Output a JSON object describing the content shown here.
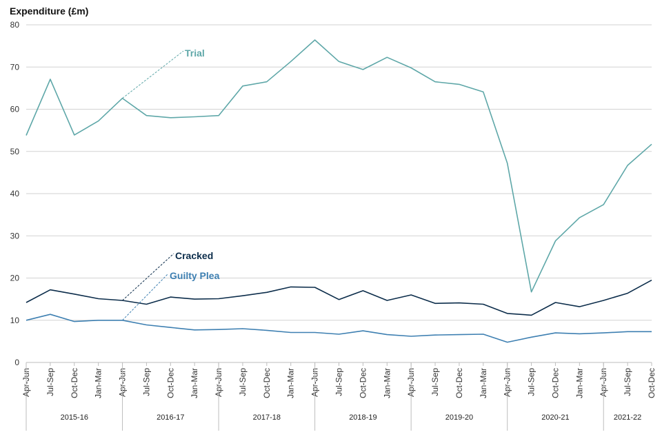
{
  "chart_data": {
    "type": "line",
    "ylabel": "Expenditure (£m)",
    "ylim": [
      0,
      80
    ],
    "yticks": [
      0,
      10,
      20,
      30,
      40,
      50,
      60,
      70,
      80
    ],
    "grid": true,
    "x": [
      "Apr-Jun",
      "Jul-Sep",
      "Oct-Dec",
      "Jan-Mar",
      "Apr-Jun",
      "Jul-Sep",
      "Oct-Dec",
      "Jan-Mar",
      "Apr-Jun",
      "Jul-Sep",
      "Oct-Dec",
      "Jan-Mar",
      "Apr-Jun",
      "Jul-Sep",
      "Oct-Dec",
      "Jan-Mar",
      "Apr-Jun",
      "Jul-Sep",
      "Oct-Dec",
      "Jan-Mar",
      "Apr-Jun",
      "Jul-Sep",
      "Oct-Dec",
      "Jan-Mar",
      "Apr-Jun",
      "Jul-Sep",
      "Oct-Dec"
    ],
    "years": [
      {
        "label": "2015-16",
        "quarters": 4
      },
      {
        "label": "2016-17",
        "quarters": 4
      },
      {
        "label": "2017-18",
        "quarters": 4
      },
      {
        "label": "2018-19",
        "quarters": 4
      },
      {
        "label": "2019-20",
        "quarters": 4
      },
      {
        "label": "2020-21",
        "quarters": 4
      },
      {
        "label": "2021-22",
        "quarters": 3
      }
    ],
    "series": [
      {
        "name": "Trial",
        "color": "#5ea7a8",
        "label_at_index": 4,
        "values": [
          53.8,
          67.1,
          53.9,
          57.2,
          62.6,
          58.5,
          58.0,
          58.2,
          58.5,
          65.5,
          66.5,
          71.3,
          76.4,
          71.3,
          69.4,
          72.3,
          69.8,
          66.5,
          65.9,
          64.1,
          47.2,
          16.7,
          28.8,
          34.3,
          37.4,
          46.7,
          51.7
        ]
      },
      {
        "name": "Cracked",
        "color": "#0b2c4a",
        "label_at_index": 4,
        "values": [
          14.2,
          17.2,
          16.2,
          15.1,
          14.7,
          13.8,
          15.5,
          15.0,
          15.1,
          15.8,
          16.6,
          17.9,
          17.8,
          14.9,
          17.0,
          14.7,
          16.0,
          14.0,
          14.1,
          13.8,
          11.6,
          11.2,
          14.2,
          13.2,
          14.7,
          16.4,
          19.5
        ]
      },
      {
        "name": "Guilty Plea",
        "color": "#3d7fb1",
        "label_at_index": 4,
        "values": [
          10.0,
          11.4,
          9.7,
          10.0,
          10.0,
          8.9,
          8.3,
          7.7,
          7.8,
          8.0,
          7.6,
          7.1,
          7.1,
          6.7,
          7.5,
          6.6,
          6.2,
          6.5,
          6.6,
          6.7,
          4.8,
          6.0,
          7.0,
          6.8,
          7.0,
          7.3,
          7.3
        ]
      }
    ]
  }
}
